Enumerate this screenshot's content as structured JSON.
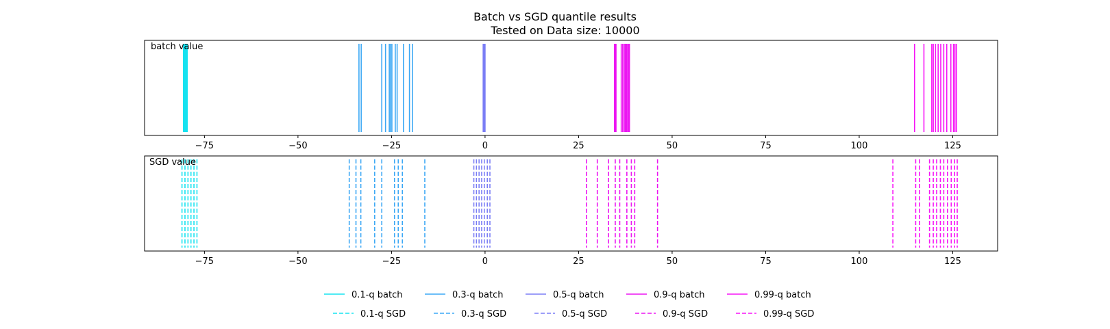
{
  "chart_data": {
    "type": "event-lines",
    "title": "Batch vs SGD quantile results",
    "subtitle": "Tested on Data size: 10000",
    "xlim": [
      -91,
      137
    ],
    "x_ticks": [
      -75,
      -50,
      -25,
      0,
      25,
      50,
      75,
      100,
      125
    ],
    "x_tick_labels": [
      "−75",
      "−50",
      "−25",
      "0",
      "25",
      "50",
      "75",
      "100",
      "125"
    ],
    "panels": [
      {
        "label": "batch value",
        "line_style": "solid",
        "series": [
          {
            "name": "0.1-q batch",
            "color": "#17e3f0",
            "values": [
              -80.6,
              -80.4,
              -80.3,
              -80.2,
              -80.1,
              -80.0,
              -79.9,
              -79.8,
              -79.7,
              -79.6
            ]
          },
          {
            "name": "0.3-q batch",
            "color": "#3ca8f5",
            "values": [
              -33.7,
              -33.1,
              -27.6,
              -26.6,
              -25.6,
              -25.3,
              -24.9,
              -24.0,
              -23.5,
              -21.8,
              -20.2,
              -19.4
            ]
          },
          {
            "name": "0.5-q batch",
            "color": "#7b7ef5",
            "values": [
              -0.5,
              -0.4,
              -0.3,
              -0.2,
              -0.1,
              0.0
            ]
          },
          {
            "name": "0.9-q batch",
            "color": "#ec14f2",
            "values": [
              34.6,
              34.8,
              35.0,
              36.4,
              36.8,
              37.2,
              37.5,
              37.8,
              38.1,
              38.4,
              38.6
            ]
          },
          {
            "name": "0.99-q batch",
            "color": "#f715f7",
            "values": [
              114.8,
              117.3,
              119.4,
              119.8,
              120.4,
              121.1,
              121.8,
              122.6,
              123.4,
              124.5,
              125.2,
              125.6,
              126.0
            ]
          }
        ]
      },
      {
        "label": "SGD value",
        "line_style": "dashed",
        "series": [
          {
            "name": "0.1-q SGD",
            "color": "#17e3f0",
            "values": [
              -81.0,
              -80.2,
              -79.4,
              -78.6,
              -77.8,
              -77.0
            ]
          },
          {
            "name": "0.3-q SGD",
            "color": "#3ca8f5",
            "values": [
              -36.3,
              -34.5,
              -33.2,
              -29.5,
              -27.6,
              -24.2,
              -23.2,
              -22.1,
              -16.1
            ]
          },
          {
            "name": "0.5-q SGD",
            "color": "#7b7ef5",
            "values": [
              -3.0,
              -2.3,
              -1.6,
              -0.9,
              -0.2,
              0.6,
              1.3
            ]
          },
          {
            "name": "0.9-q SGD",
            "color": "#ec14f2",
            "values": [
              27.1,
              30.0,
              33.0,
              34.8,
              36.0,
              37.9,
              39.1,
              40.0,
              46.1
            ]
          },
          {
            "name": "0.99-q SGD",
            "color": "#f715f7",
            "values": [
              109.0,
              115.1,
              116.1,
              118.8,
              119.8,
              120.7,
              121.7,
              122.6,
              123.6,
              124.6,
              125.5,
              126.2
            ]
          }
        ]
      }
    ],
    "legend": {
      "placement": "bottom-center",
      "rows": [
        [
          {
            "label": "0.1-q batch",
            "color": "#17e3f0",
            "style": "solid"
          },
          {
            "label": "0.3-q batch",
            "color": "#3ca8f5",
            "style": "solid"
          },
          {
            "label": "0.5-q batch",
            "color": "#7b7ef5",
            "style": "solid"
          },
          {
            "label": "0.9-q batch",
            "color": "#ec14f2",
            "style": "solid"
          },
          {
            "label": "0.99-q batch",
            "color": "#f715f7",
            "style": "solid"
          }
        ],
        [
          {
            "label": "0.1-q SGD",
            "color": "#17e3f0",
            "style": "dashed"
          },
          {
            "label": "0.3-q SGD",
            "color": "#3ca8f5",
            "style": "dashed"
          },
          {
            "label": "0.5-q SGD",
            "color": "#7b7ef5",
            "style": "dashed"
          },
          {
            "label": "0.9-q SGD",
            "color": "#ec14f2",
            "style": "dashed"
          },
          {
            "label": "0.99-q SGD",
            "color": "#f715f7",
            "style": "dashed"
          }
        ]
      ]
    },
    "grid": false
  }
}
